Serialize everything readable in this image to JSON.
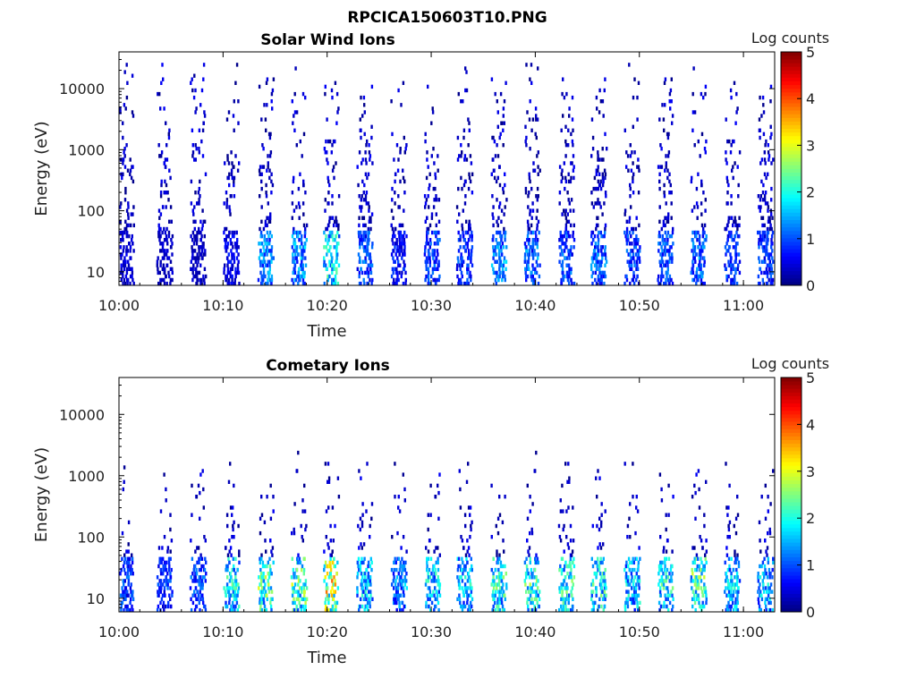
{
  "figure_title": "RPCICA150603T10.PNG",
  "chart_data": [
    {
      "type": "heatmap",
      "title": "Solar Wind Ions",
      "xlabel": "Time",
      "ylabel": "Energy (eV)",
      "x_ticks": [
        "10:00",
        "10:10",
        "10:20",
        "10:30",
        "10:40",
        "10:50",
        "11:00"
      ],
      "x_range": [
        "10:00",
        "11:03"
      ],
      "y_scale": "log",
      "y_ticks": [
        10,
        100,
        1000,
        10000
      ],
      "y_tick_labels": [
        "10",
        "100",
        "1000",
        "10000"
      ],
      "y_range": [
        6,
        40000
      ],
      "colorbar": {
        "label": "Log counts",
        "range": [
          0,
          5
        ],
        "ticks": [
          "0",
          "1",
          "2",
          "3",
          "4",
          "5"
        ],
        "colormap": "jet"
      },
      "burst_times_min": [
        0.6,
        4.3,
        7.5,
        10.7,
        14.0,
        17.2,
        20.3,
        23.5,
        26.8,
        30.0,
        33.1,
        36.4,
        39.6,
        42.9,
        46.0,
        49.2,
        52.4,
        55.6,
        58.8,
        62.0
      ],
      "burst_peak_log_counts": [
        0.6,
        0.5,
        0.5,
        0.8,
        1.8,
        1.9,
        2.6,
        1.4,
        1.0,
        1.3,
        1.2,
        1.7,
        1.6,
        1.4,
        1.5,
        1.3,
        1.4,
        1.6,
        1.3,
        1.2
      ],
      "burst_energy_extent_eV": [
        6,
        20000
      ]
    },
    {
      "type": "heatmap",
      "title": "Cometary Ions",
      "xlabel": "Time",
      "ylabel": "Energy (eV)",
      "x_ticks": [
        "10:00",
        "10:10",
        "10:20",
        "10:30",
        "10:40",
        "10:50",
        "11:00"
      ],
      "x_range": [
        "10:00",
        "11:03"
      ],
      "y_scale": "log",
      "y_ticks": [
        10,
        100,
        1000,
        10000
      ],
      "y_tick_labels": [
        "10",
        "100",
        "1000",
        "10000"
      ],
      "y_range": [
        6,
        40000
      ],
      "colorbar": {
        "label": "Log counts",
        "range": [
          0,
          5
        ],
        "ticks": [
          "0",
          "1",
          "2",
          "3",
          "4",
          "5"
        ],
        "colormap": "jet"
      },
      "burst_times_min": [
        0.6,
        4.3,
        7.5,
        10.7,
        14.0,
        17.2,
        20.3,
        23.5,
        26.8,
        30.0,
        33.1,
        36.4,
        39.6,
        42.9,
        46.0,
        49.2,
        52.4,
        55.6,
        58.8,
        62.0
      ],
      "burst_peak_log_counts": [
        1.3,
        1.2,
        1.4,
        2.5,
        3.0,
        3.0,
        3.8,
        2.2,
        1.8,
        2.3,
        2.2,
        2.7,
        2.8,
        2.6,
        2.6,
        2.3,
        2.5,
        3.0,
        2.2,
        2.1
      ],
      "burst_energy_extent_eV": [
        6,
        2000
      ]
    }
  ]
}
